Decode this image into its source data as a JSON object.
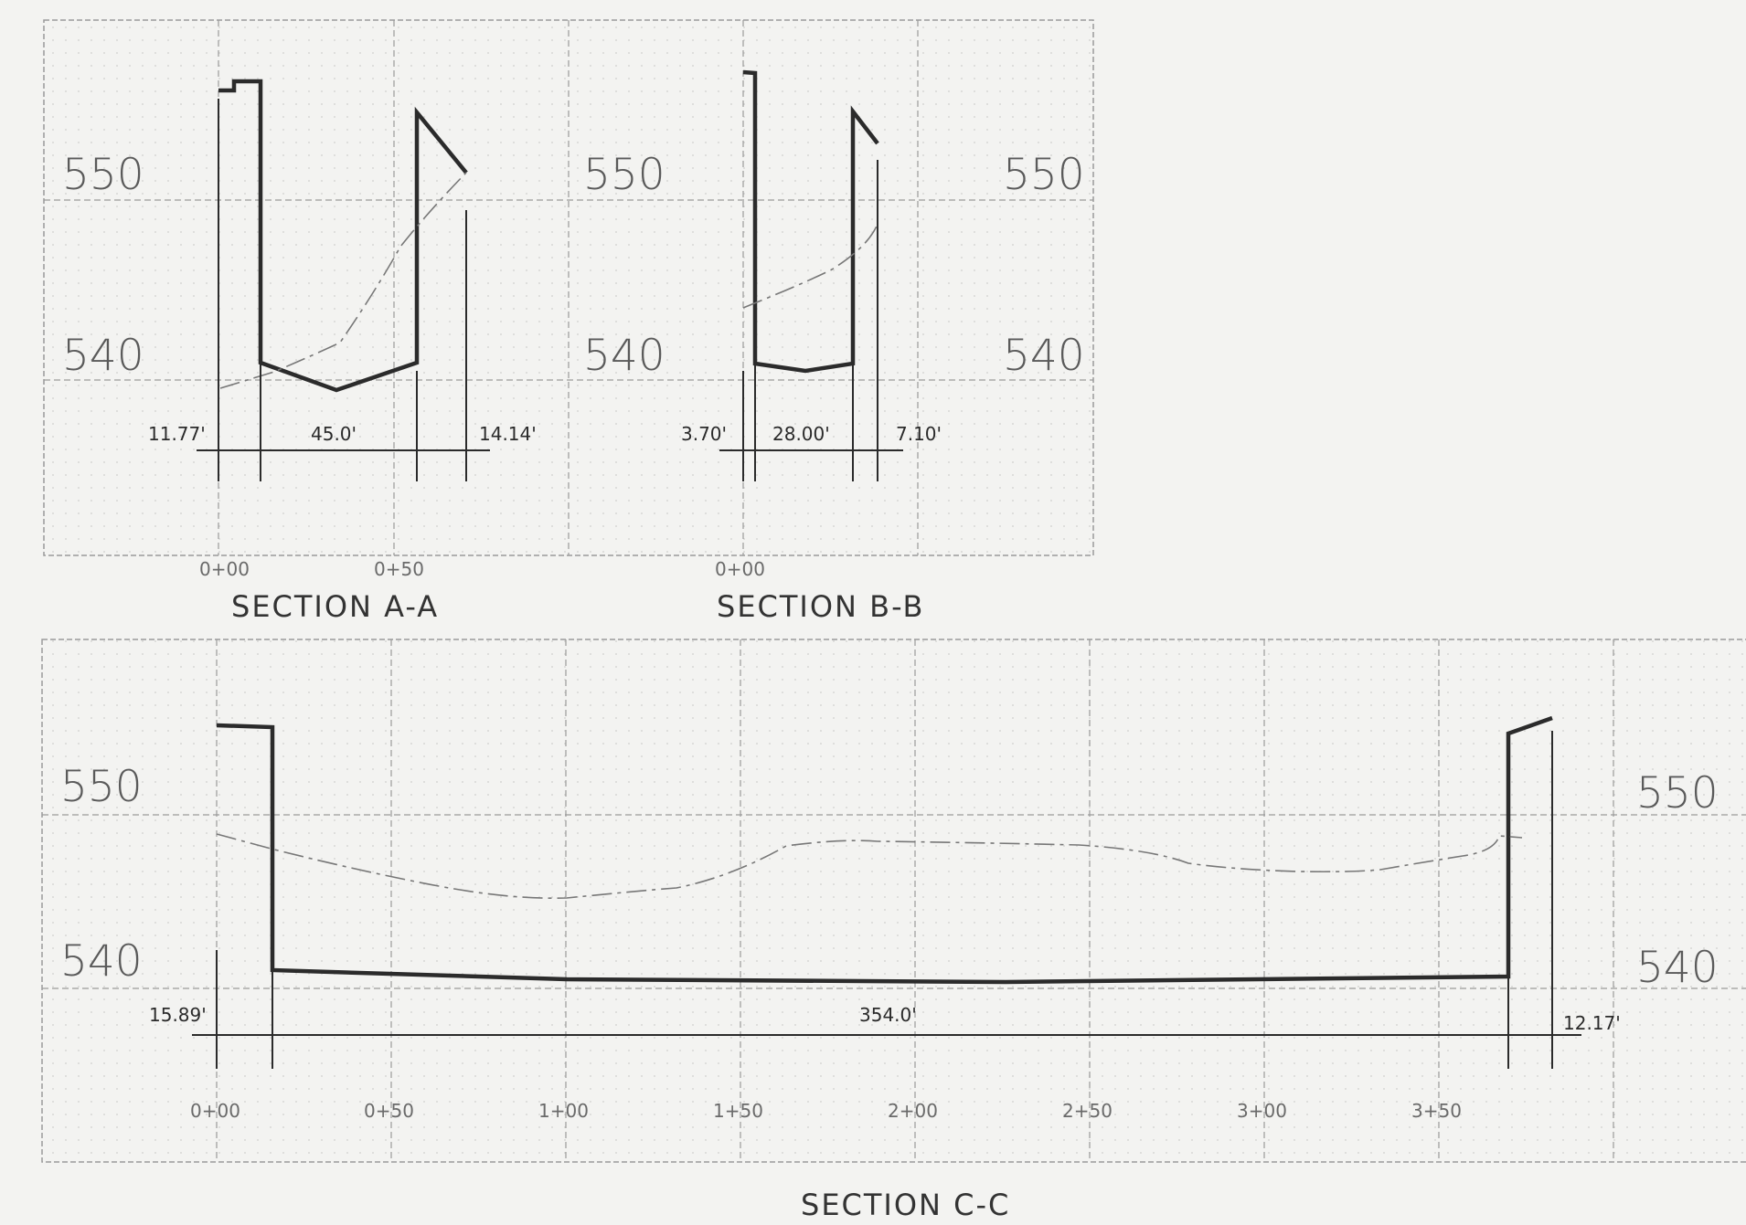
{
  "sections": [
    {
      "id": "a",
      "title": "SECTION A-A",
      "elevation_labels_left": [
        "550",
        "540"
      ],
      "station_labels": [
        "0+00",
        "0+50"
      ],
      "dimensions": [
        "11.77'",
        "45.0'",
        "14.14'"
      ]
    },
    {
      "id": "b",
      "title": "SECTION B-B",
      "elevation_labels_left": [
        "550",
        "540"
      ],
      "elevation_labels_right": [
        "550",
        "540"
      ],
      "station_labels": [
        "0+00"
      ],
      "dimensions": [
        "3.70'",
        "28.00'",
        "7.10'"
      ]
    },
    {
      "id": "c",
      "title": "SECTION C-C",
      "elevation_labels_left": [
        "550",
        "540"
      ],
      "elevation_labels_right": [
        "550",
        "540"
      ],
      "station_labels": [
        "0+00",
        "0+50",
        "1+00",
        "1+50",
        "2+00",
        "2+50",
        "3+00",
        "3+50"
      ],
      "dimensions": [
        "15.89'",
        "354.0'",
        "12.17'"
      ]
    }
  ],
  "colors": {
    "background": "#f3f3f1",
    "grid": "#9a9a9a",
    "section_line": "#2b2b2b",
    "ground_line": "#777777"
  }
}
